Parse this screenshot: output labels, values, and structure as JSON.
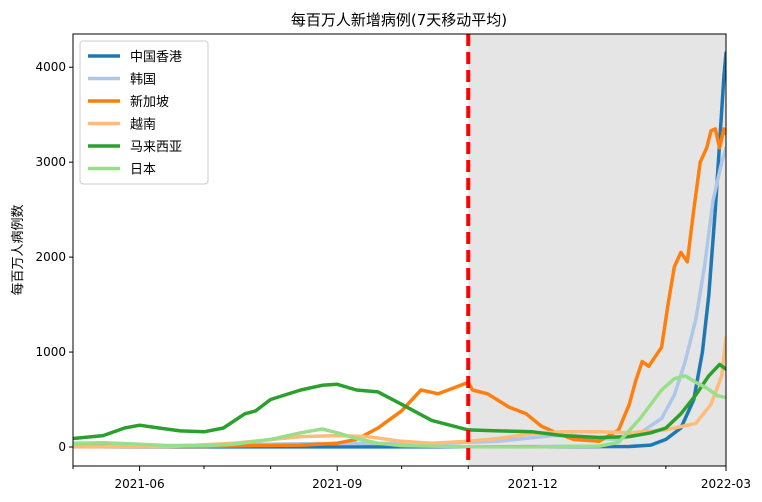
{
  "chart_data": {
    "type": "line",
    "title": "每百万人新增病例(7天移动平均)",
    "xlabel": "",
    "ylabel": "每百万人病例数",
    "x_range": [
      "2021-05-01",
      "2022-03-01"
    ],
    "ylim": [
      -200,
      4350
    ],
    "x_ticks": [
      {
        "date": "2021-06-01",
        "label": "2021-06"
      },
      {
        "date": "2021-09-01",
        "label": "2021-09"
      },
      {
        "date": "2021-12-01",
        "label": "2021-12"
      },
      {
        "date": "2022-03-01",
        "label": "2022-03"
      }
    ],
    "y_ticks": [
      0,
      1000,
      2000,
      3000,
      4000
    ],
    "grid": false,
    "legend_position": "top-left",
    "shaded_region": {
      "from": "2021-11-01",
      "to": "2022-03-01",
      "color": "#e5e5e5"
    },
    "vertical_line": {
      "date": "2021-11-01",
      "color": "#ff0000",
      "style": "dashed"
    },
    "series": [
      {
        "name": "中国香港",
        "color": "#1f77b4",
        "points": [
          [
            "2021-05-01",
            2
          ],
          [
            "2021-08-01",
            1
          ],
          [
            "2021-11-01",
            2
          ],
          [
            "2022-01-15",
            5
          ],
          [
            "2022-01-25",
            20
          ],
          [
            "2022-02-01",
            80
          ],
          [
            "2022-02-08",
            200
          ],
          [
            "2022-02-14",
            500
          ],
          [
            "2022-02-18",
            1000
          ],
          [
            "2022-02-21",
            1600
          ],
          [
            "2022-02-24",
            2500
          ],
          [
            "2022-02-26",
            3200
          ],
          [
            "2022-02-28",
            3900
          ],
          [
            "2022-03-01",
            4150
          ]
        ]
      },
      {
        "name": "韩国",
        "color": "#aec7e8",
        "points": [
          [
            "2021-05-01",
            12
          ],
          [
            "2021-06-01",
            10
          ],
          [
            "2021-07-15",
            25
          ],
          [
            "2021-08-15",
            35
          ],
          [
            "2021-09-15",
            40
          ],
          [
            "2021-10-15",
            35
          ],
          [
            "2021-11-15",
            60
          ],
          [
            "2021-12-10",
            120
          ],
          [
            "2021-12-20",
            120
          ],
          [
            "2022-01-01",
            90
          ],
          [
            "2022-01-10",
            80
          ],
          [
            "2022-01-20",
            150
          ],
          [
            "2022-01-30",
            300
          ],
          [
            "2022-02-05",
            550
          ],
          [
            "2022-02-10",
            900
          ],
          [
            "2022-02-15",
            1350
          ],
          [
            "2022-02-19",
            1900
          ],
          [
            "2022-02-23",
            2600
          ],
          [
            "2022-02-27",
            3000
          ],
          [
            "2022-03-01",
            3150
          ]
        ]
      },
      {
        "name": "新加坡",
        "color": "#ff7f0e",
        "points": [
          [
            "2021-05-01",
            5
          ],
          [
            "2021-06-01",
            5
          ],
          [
            "2021-07-01",
            5
          ],
          [
            "2021-07-20",
            15
          ],
          [
            "2021-08-15",
            20
          ],
          [
            "2021-09-01",
            40
          ],
          [
            "2021-09-10",
            80
          ],
          [
            "2021-09-20",
            200
          ],
          [
            "2021-10-01",
            380
          ],
          [
            "2021-10-10",
            600
          ],
          [
            "2021-10-18",
            560
          ],
          [
            "2021-10-25",
            620
          ],
          [
            "2021-11-01",
            680
          ],
          [
            "2021-11-03",
            600
          ],
          [
            "2021-11-10",
            560
          ],
          [
            "2021-11-20",
            420
          ],
          [
            "2021-11-28",
            350
          ],
          [
            "2021-12-05",
            220
          ],
          [
            "2021-12-12",
            150
          ],
          [
            "2021-12-20",
            80
          ],
          [
            "2022-01-01",
            60
          ],
          [
            "2022-01-10",
            180
          ],
          [
            "2022-01-15",
            450
          ],
          [
            "2022-01-18",
            700
          ],
          [
            "2022-01-21",
            900
          ],
          [
            "2022-01-24",
            850
          ],
          [
            "2022-01-27",
            950
          ],
          [
            "2022-01-30",
            1050
          ],
          [
            "2022-02-02",
            1500
          ],
          [
            "2022-02-05",
            1900
          ],
          [
            "2022-02-08",
            2050
          ],
          [
            "2022-02-11",
            1950
          ],
          [
            "2022-02-14",
            2500
          ],
          [
            "2022-02-17",
            3000
          ],
          [
            "2022-02-20",
            3150
          ],
          [
            "2022-02-22",
            3330
          ],
          [
            "2022-02-24",
            3350
          ],
          [
            "2022-02-26",
            3150
          ],
          [
            "2022-02-28",
            3350
          ],
          [
            "2022-03-01",
            3300
          ]
        ]
      },
      {
        "name": "越南",
        "color": "#ffbb78",
        "points": [
          [
            "2021-05-01",
            1
          ],
          [
            "2021-06-15",
            5
          ],
          [
            "2021-07-15",
            40
          ],
          [
            "2021-08-15",
            110
          ],
          [
            "2021-09-01",
            120
          ],
          [
            "2021-09-15",
            110
          ],
          [
            "2021-10-01",
            60
          ],
          [
            "2021-10-15",
            40
          ],
          [
            "2021-11-01",
            60
          ],
          [
            "2021-11-15",
            90
          ],
          [
            "2021-12-01",
            140
          ],
          [
            "2021-12-15",
            160
          ],
          [
            "2022-01-01",
            160
          ],
          [
            "2022-01-15",
            150
          ],
          [
            "2022-02-01",
            180
          ],
          [
            "2022-02-15",
            250
          ],
          [
            "2022-02-22",
            450
          ],
          [
            "2022-02-27",
            750
          ],
          [
            "2022-03-01",
            1150
          ]
        ]
      },
      {
        "name": "马来西亚",
        "color": "#2ca02c",
        "points": [
          [
            "2021-05-01",
            90
          ],
          [
            "2021-05-15",
            120
          ],
          [
            "2021-05-25",
            200
          ],
          [
            "2021-06-01",
            230
          ],
          [
            "2021-06-10",
            200
          ],
          [
            "2021-06-20",
            170
          ],
          [
            "2021-07-01",
            160
          ],
          [
            "2021-07-10",
            200
          ],
          [
            "2021-07-20",
            350
          ],
          [
            "2021-07-25",
            380
          ],
          [
            "2021-08-01",
            500
          ],
          [
            "2021-08-15",
            600
          ],
          [
            "2021-08-25",
            650
          ],
          [
            "2021-09-01",
            660
          ],
          [
            "2021-09-10",
            600
          ],
          [
            "2021-09-20",
            580
          ],
          [
            "2021-10-01",
            450
          ],
          [
            "2021-10-15",
            280
          ],
          [
            "2021-11-01",
            180
          ],
          [
            "2021-11-15",
            170
          ],
          [
            "2021-12-01",
            160
          ],
          [
            "2021-12-15",
            120
          ],
          [
            "2022-01-01",
            100
          ],
          [
            "2022-01-15",
            110
          ],
          [
            "2022-01-25",
            150
          ],
          [
            "2022-02-01",
            200
          ],
          [
            "2022-02-08",
            350
          ],
          [
            "2022-02-15",
            550
          ],
          [
            "2022-02-21",
            750
          ],
          [
            "2022-02-26",
            870
          ],
          [
            "2022-03-01",
            820
          ]
        ]
      },
      {
        "name": "日本",
        "color": "#98df8a",
        "points": [
          [
            "2021-05-01",
            40
          ],
          [
            "2021-05-15",
            45
          ],
          [
            "2021-06-01",
            30
          ],
          [
            "2021-06-15",
            15
          ],
          [
            "2021-07-01",
            15
          ],
          [
            "2021-07-15",
            30
          ],
          [
            "2021-08-01",
            80
          ],
          [
            "2021-08-15",
            150
          ],
          [
            "2021-08-25",
            190
          ],
          [
            "2021-09-01",
            150
          ],
          [
            "2021-09-10",
            90
          ],
          [
            "2021-09-20",
            40
          ],
          [
            "2021-10-01",
            15
          ],
          [
            "2021-11-01",
            2
          ],
          [
            "2021-12-01",
            1
          ],
          [
            "2022-01-01",
            10
          ],
          [
            "2022-01-10",
            50
          ],
          [
            "2022-01-20",
            300
          ],
          [
            "2022-01-30",
            600
          ],
          [
            "2022-02-05",
            720
          ],
          [
            "2022-02-10",
            750
          ],
          [
            "2022-02-15",
            680
          ],
          [
            "2022-02-20",
            620
          ],
          [
            "2022-02-25",
            540
          ],
          [
            "2022-03-01",
            520
          ]
        ]
      }
    ]
  }
}
